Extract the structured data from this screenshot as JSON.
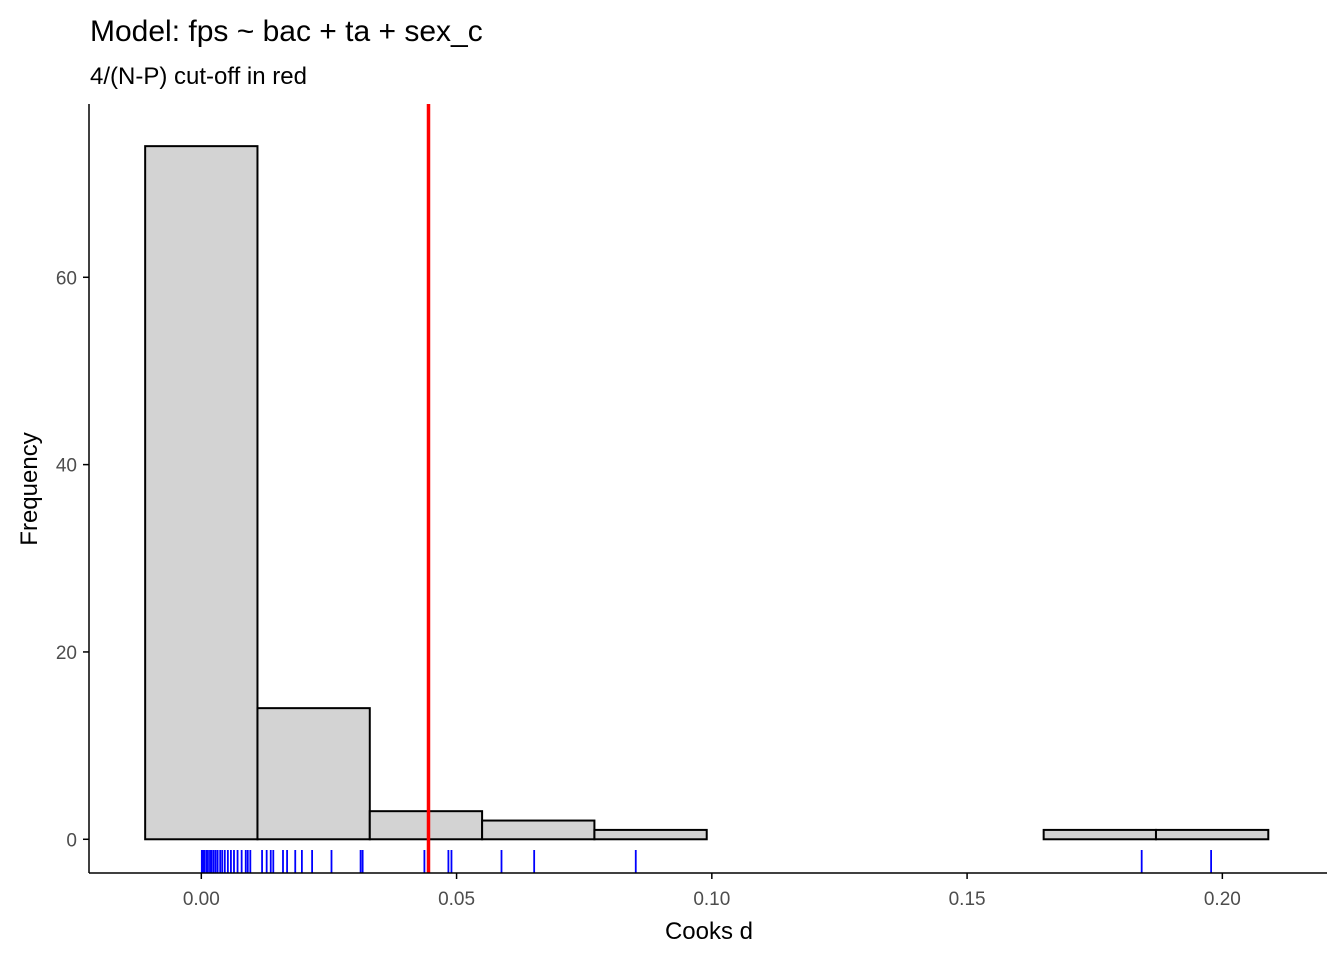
{
  "chart_data": {
    "type": "bar",
    "subtype": "histogram",
    "title": "Model: fps ~ bac + ta + sex_c",
    "subtitle": "4/(N-P) cut-off in red",
    "xlabel": "Cooks d",
    "ylabel": "Frequency",
    "xlim": [
      -0.022,
      0.2205
    ],
    "ylim": [
      -3.6,
      78.5
    ],
    "x_ticks": [
      0.0,
      0.05,
      0.1,
      0.15,
      0.2
    ],
    "x_tick_labels": [
      "0.00",
      "0.05",
      "0.10",
      "0.15",
      "0.20"
    ],
    "y_ticks": [
      0,
      20,
      40,
      60
    ],
    "y_tick_labels": [
      "0",
      "20",
      "40",
      "60"
    ],
    "bins": [
      {
        "x0": -0.011,
        "x1": 0.011,
        "count": 74
      },
      {
        "x0": 0.011,
        "x1": 0.033,
        "count": 14
      },
      {
        "x0": 0.033,
        "x1": 0.055,
        "count": 3
      },
      {
        "x0": 0.055,
        "x1": 0.077,
        "count": 2
      },
      {
        "x0": 0.077,
        "x1": 0.099,
        "count": 1
      },
      {
        "x0": 0.099,
        "x1": 0.121,
        "count": 0
      },
      {
        "x0": 0.121,
        "x1": 0.143,
        "count": 0
      },
      {
        "x0": 0.143,
        "x1": 0.165,
        "count": 0
      },
      {
        "x0": 0.165,
        "x1": 0.187,
        "count": 1
      },
      {
        "x0": 0.187,
        "x1": 0.209,
        "count": 1
      }
    ],
    "cutoff": 0.0445,
    "rug": [
      0.0001,
      0.0003,
      0.0006,
      0.001,
      0.0013,
      0.0017,
      0.002,
      0.0024,
      0.0028,
      0.0032,
      0.0037,
      0.0041,
      0.0046,
      0.0052,
      0.0058,
      0.0064,
      0.0071,
      0.0079,
      0.0087,
      0.0091,
      0.0096,
      0.0119,
      0.0128,
      0.0136,
      0.0141,
      0.016,
      0.0168,
      0.0184,
      0.0197,
      0.0217,
      0.0255,
      0.0312,
      0.0316,
      0.0437,
      0.0484,
      0.049,
      0.0588,
      0.0652,
      0.0851,
      0.1842,
      0.1978
    ],
    "colors": {
      "bar_fill": "#d3d3d3",
      "bar_stroke": "#000000",
      "cutoff_line": "#ff0000",
      "rug": "#0000ff",
      "axis": "#000000",
      "tick_text": "#4d4d4d"
    },
    "grid": false,
    "legend": "none"
  }
}
